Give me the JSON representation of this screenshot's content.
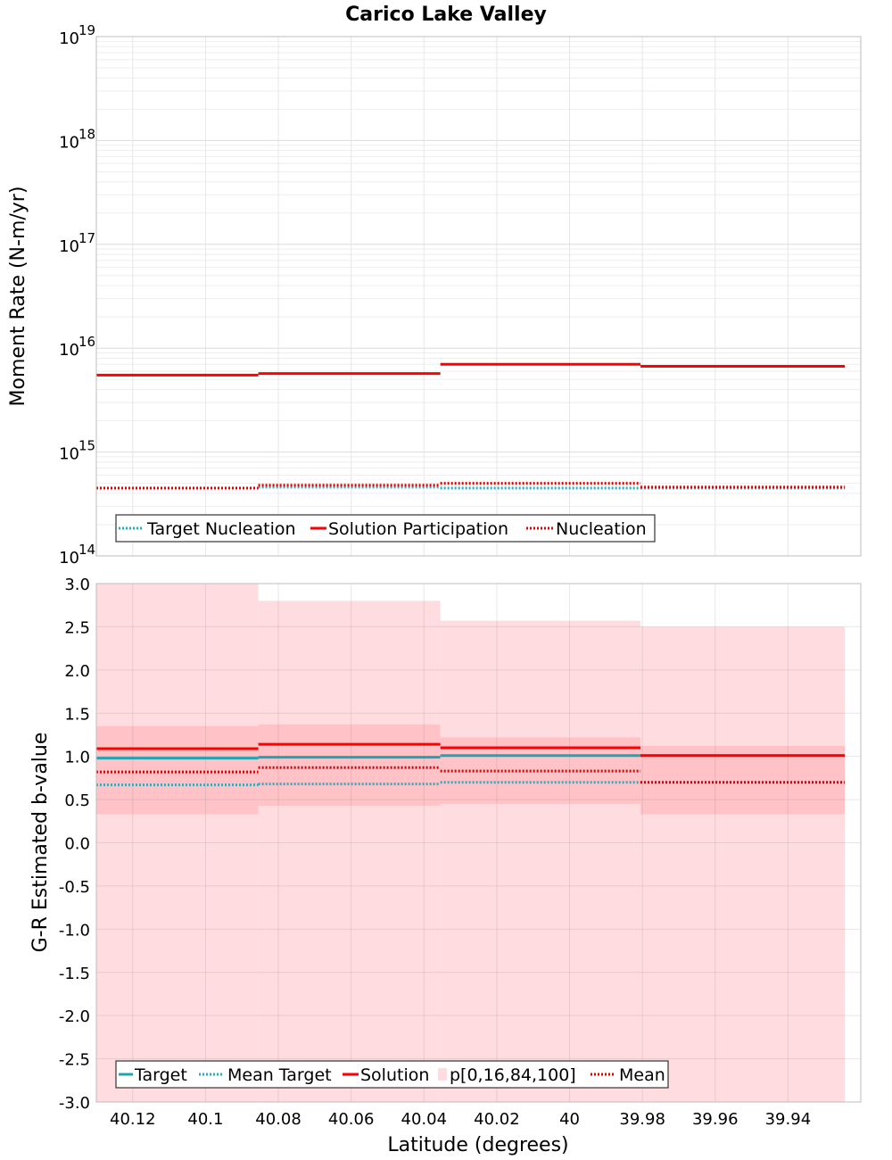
{
  "chart_data": [
    {
      "type": "line",
      "title": "Carico Lake Valley",
      "ylabel": "Moment Rate (N-m/yr)",
      "xlabel": "",
      "yscale": "log",
      "ylim": [
        100000000000000.0,
        1e+19
      ],
      "xlim": [
        40.13,
        39.92
      ],
      "xaxis_reversed": true,
      "y_tick_labels": [
        {
          "base": "10",
          "exp": "14",
          "value": 100000000000000.0
        },
        {
          "base": "10",
          "exp": "15",
          "value": 1000000000000000.0
        },
        {
          "base": "10",
          "exp": "16",
          "value": 1e+16
        },
        {
          "base": "10",
          "exp": "17",
          "value": 1e+17
        },
        {
          "base": "10",
          "exp": "18",
          "value": 1e+18
        },
        {
          "base": "10",
          "exp": "19",
          "value": 1e+19
        }
      ],
      "segment_edges": [
        40.13,
        40.0855,
        40.0355,
        39.9805,
        39.9244
      ],
      "series": [
        {
          "name": "Target Nucleation",
          "style": "dotted",
          "color": "#1fb3c4",
          "values": [
            450000000000000.0,
            460000000000000.0,
            450000000000000.0,
            450000000000000.0
          ]
        },
        {
          "name": "Solution Participation",
          "style": "solid",
          "color": "#ff0000",
          "values": [
            5500000000000000.0,
            5700000000000000.0,
            7000000000000000.0,
            6700000000000000.0
          ]
        },
        {
          "name": "Nucleation",
          "style": "dotted",
          "color": "#e00000",
          "values": [
            450000000000000.0,
            480000000000000.0,
            500000000000000.0,
            460000000000000.0
          ]
        }
      ],
      "legend": [
        "Target Nucleation",
        "Solution Participation",
        "Nucleation"
      ],
      "legend_position": "bottom-left",
      "grid": true
    },
    {
      "type": "line",
      "title": "",
      "ylabel": "G-R Estimated b-value",
      "xlabel": "Latitude (degrees)",
      "ylim": [
        -3.0,
        3.0
      ],
      "xlim": [
        40.13,
        39.92
      ],
      "xaxis_reversed": true,
      "y_ticks": [
        "3.0",
        "2.5",
        "2.0",
        "1.5",
        "1.0",
        "0.5",
        "0.0",
        "-0.5",
        "-1.0",
        "-1.5",
        "-2.0",
        "-2.5",
        "-3.0"
      ],
      "x_ticks": [
        "40.12",
        "40.1",
        "40.08",
        "40.06",
        "40.04",
        "40.02",
        "40",
        "39.98",
        "39.96",
        "39.94"
      ],
      "segment_edges": [
        40.13,
        40.0855,
        40.0355,
        39.9805,
        39.9244
      ],
      "series": [
        {
          "name": "Target",
          "style": "solid",
          "color": "#1fa5b2",
          "values": [
            0.98,
            0.99,
            1.01,
            1.01
          ]
        },
        {
          "name": "Mean Target",
          "style": "dotted",
          "color": "#1fb3c4",
          "values": [
            0.67,
            0.68,
            0.7,
            0.7
          ]
        },
        {
          "name": "Solution",
          "style": "solid",
          "color": "#ff0000",
          "values": [
            1.09,
            1.14,
            1.1,
            1.01
          ]
        },
        {
          "name": "Mean",
          "style": "dotted",
          "color": "#e00000",
          "values": [
            0.82,
            0.87,
            0.83,
            0.7
          ]
        }
      ],
      "bands": {
        "name": "p[0,16,84,100]",
        "p0": [
          -3.0,
          -3.0,
          -3.0,
          -3.0
        ],
        "p16": [
          0.33,
          0.43,
          0.45,
          0.33
        ],
        "p84": [
          1.35,
          1.37,
          1.22,
          1.12
        ],
        "p100": [
          3.0,
          2.8,
          2.57,
          2.5
        ]
      },
      "legend": [
        "Target",
        "Mean Target",
        "Solution",
        "p[0,16,84,100]",
        "Mean"
      ],
      "legend_position": "bottom-left",
      "grid": true
    }
  ]
}
